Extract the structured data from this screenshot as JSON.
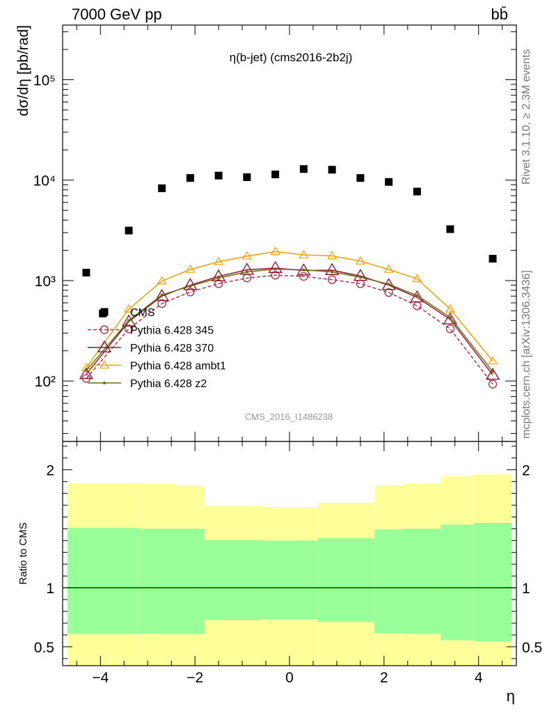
{
  "header": {
    "left_label": "7000 GeV pp",
    "right_label": "bb̄"
  },
  "side_labels": {
    "rivet": "Rivet 3.1.10, ≥ 2.3M events",
    "mcplots": "mcplots.cern.ch [arXiv:1306.3436]"
  },
  "colors": {
    "cms": "#000000",
    "p345": "#b0304f",
    "p370": "#8b1a2a",
    "ambt1": "#f0a000",
    "z2": "#6b6b10",
    "band_inner": "#99ff99",
    "band_outer": "#ffff99"
  },
  "chart_data": [
    {
      "type": "line",
      "title": "η(b-jet) (cms2016-2b2j)",
      "watermark": "CMS_2016_I1486238",
      "ylabel": "dσ/dη [pb/rad]",
      "yscale": "log",
      "ylim": [
        25,
        350000
      ],
      "xlim": [
        -4.8,
        4.8
      ],
      "y_ticks": [
        {
          "value": 100,
          "label": "10²"
        },
        {
          "value": 1000,
          "label": "10³"
        },
        {
          "value": 10000,
          "label": "10⁴"
        },
        {
          "value": 100000,
          "label": "10⁵"
        }
      ],
      "legend_position": "lower-left",
      "x": [
        -4.3,
        -3.4,
        -2.7,
        -2.1,
        -1.5,
        -0.9,
        -0.3,
        0.3,
        0.9,
        1.5,
        2.1,
        2.7,
        3.4,
        4.3
      ],
      "series": [
        {
          "name": "CMS",
          "style": "data",
          "points": [
            [
              -4.3,
              1200
            ],
            [
              -3.95,
              470
            ],
            [
              -3.4,
              3150
            ],
            [
              -2.7,
              8300
            ],
            [
              -2.1,
              10500
            ],
            [
              -1.5,
              11100
            ],
            [
              -0.9,
              10700
            ],
            [
              -0.3,
              11400
            ],
            [
              0.3,
              12900
            ],
            [
              0.9,
              12700
            ],
            [
              1.5,
              10500
            ],
            [
              2.1,
              9600
            ],
            [
              2.7,
              7700
            ],
            [
              3.4,
              3250
            ],
            [
              4.3,
              1650
            ]
          ]
        },
        {
          "name": "Pythia 6.428 345",
          "style": "p345",
          "values": [
            106,
            330,
            590,
            770,
            930,
            1060,
            1130,
            1100,
            1020,
            930,
            760,
            560,
            330,
            93
          ]
        },
        {
          "name": "Pythia 6.428 370",
          "style": "p370",
          "values": [
            117,
            390,
            700,
            900,
            1100,
            1280,
            1330,
            1260,
            1270,
            1110,
            900,
            680,
            410,
            115
          ]
        },
        {
          "name": "Pythia 6.428 ambt1",
          "style": "ambt1",
          "values": [
            136,
            520,
            990,
            1290,
            1540,
            1750,
            1940,
            1800,
            1760,
            1560,
            1290,
            1040,
            520,
            158
          ]
        },
        {
          "name": "Pythia 6.428 z2",
          "style": "z2",
          "values": [
            127,
            400,
            720,
            880,
            1060,
            1220,
            1300,
            1280,
            1220,
            1080,
            920,
            710,
            430,
            124
          ]
        }
      ]
    },
    {
      "type": "area",
      "ylabel": "Ratio to CMS",
      "xlabel": "η",
      "xlim": [
        -4.8,
        4.8
      ],
      "ylim": [
        0.34,
        2.24
      ],
      "x_ticks": [
        -4,
        -2,
        0,
        2,
        4
      ],
      "x_tick_labels": [
        "−4",
        "−2",
        "0",
        "2",
        "4"
      ],
      "y_ticks": [
        0.5,
        1,
        2
      ],
      "y_tick_labels": [
        "0.5",
        "1",
        "2"
      ],
      "bins": [
        {
          "lo": -4.7,
          "hi": -3.2,
          "inner": [
            0.61,
            1.508
          ],
          "outer": [
            0.0,
            1.885
          ]
        },
        {
          "lo": -3.2,
          "hi": -2.4,
          "inner": [
            0.61,
            1.5
          ],
          "outer": [
            0.0,
            1.88
          ]
        },
        {
          "lo": -2.4,
          "hi": -1.8,
          "inner": [
            0.61,
            1.5
          ],
          "outer": [
            0.0,
            1.865
          ]
        },
        {
          "lo": -1.8,
          "hi": -0.6,
          "inner": [
            0.725,
            1.405
          ],
          "outer": [
            0.0,
            1.695
          ]
        },
        {
          "lo": -0.6,
          "hi": 0.0,
          "inner": [
            0.735,
            1.4
          ],
          "outer": [
            0.0,
            1.685
          ]
        },
        {
          "lo": 0.0,
          "hi": 0.6,
          "inner": [
            0.735,
            1.4
          ],
          "outer": [
            0.0,
            1.685
          ]
        },
        {
          "lo": 0.6,
          "hi": 1.8,
          "inner": [
            0.71,
            1.42
          ],
          "outer": [
            0.0,
            1.72
          ]
        },
        {
          "lo": 1.8,
          "hi": 2.4,
          "inner": [
            0.615,
            1.495
          ],
          "outer": [
            0.0,
            1.865
          ]
        },
        {
          "lo": 2.4,
          "hi": 3.2,
          "inner": [
            0.61,
            1.5
          ],
          "outer": [
            0.0,
            1.88
          ]
        },
        {
          "lo": 3.2,
          "hi": 3.9,
          "inner": [
            0.555,
            1.535
          ],
          "outer": [
            0.0,
            1.945
          ]
        },
        {
          "lo": 3.9,
          "hi": 4.7,
          "inner": [
            0.545,
            1.55
          ],
          "outer": [
            0.0,
            1.96
          ]
        }
      ],
      "reference_line": 1
    }
  ]
}
